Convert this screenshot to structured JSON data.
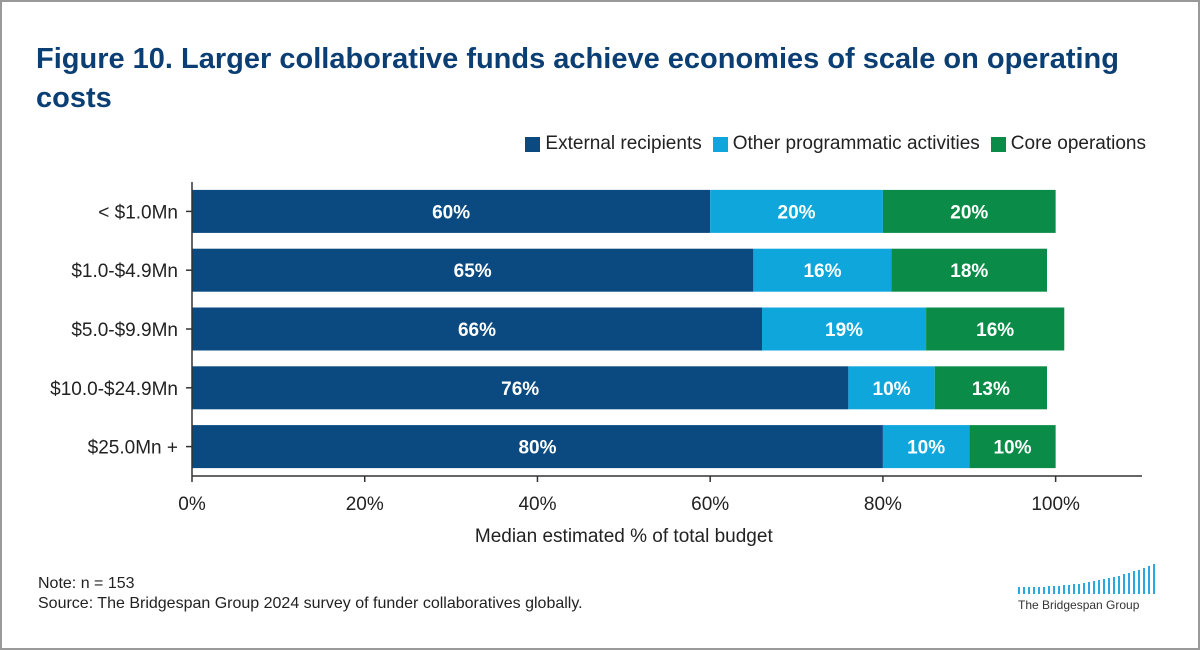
{
  "title": "Figure 10. Larger collaborative funds achieve economies of scale on operating costs",
  "notes": {
    "note": "Note: n = 153",
    "source": "Source: The Bridgespan Group 2024 survey of funder collaboratives globally."
  },
  "logo": {
    "text": "The Bridgespan Group"
  },
  "chart_data": {
    "type": "bar",
    "orientation": "horizontal",
    "stacked": true,
    "categories": [
      "< $1.0Mn",
      "$1.0-$4.9Mn",
      "$5.0-$9.9Mn",
      "$10.0-$24.9Mn",
      "$25.0Mn +"
    ],
    "series": [
      {
        "name": "External recipients",
        "color": "#0b4a80",
        "values": [
          60,
          65,
          66,
          76,
          80
        ]
      },
      {
        "name": "Other programmatic activities",
        "color": "#0fa6dc",
        "values": [
          20,
          16,
          19,
          10,
          10
        ]
      },
      {
        "name": "Core operations",
        "color": "#0a8c48",
        "values": [
          20,
          18,
          16,
          13,
          10
        ]
      }
    ],
    "data_labels": true,
    "label_suffix": "%",
    "xlabel": "Median estimated % of total budget",
    "xlim": [
      0,
      110
    ],
    "xticks": [
      0,
      20,
      40,
      60,
      80,
      100
    ],
    "xtick_labels": [
      "0%",
      "20%",
      "40%",
      "60%",
      "80%",
      "100%"
    ],
    "legend_position": "top-right",
    "grid": false
  }
}
